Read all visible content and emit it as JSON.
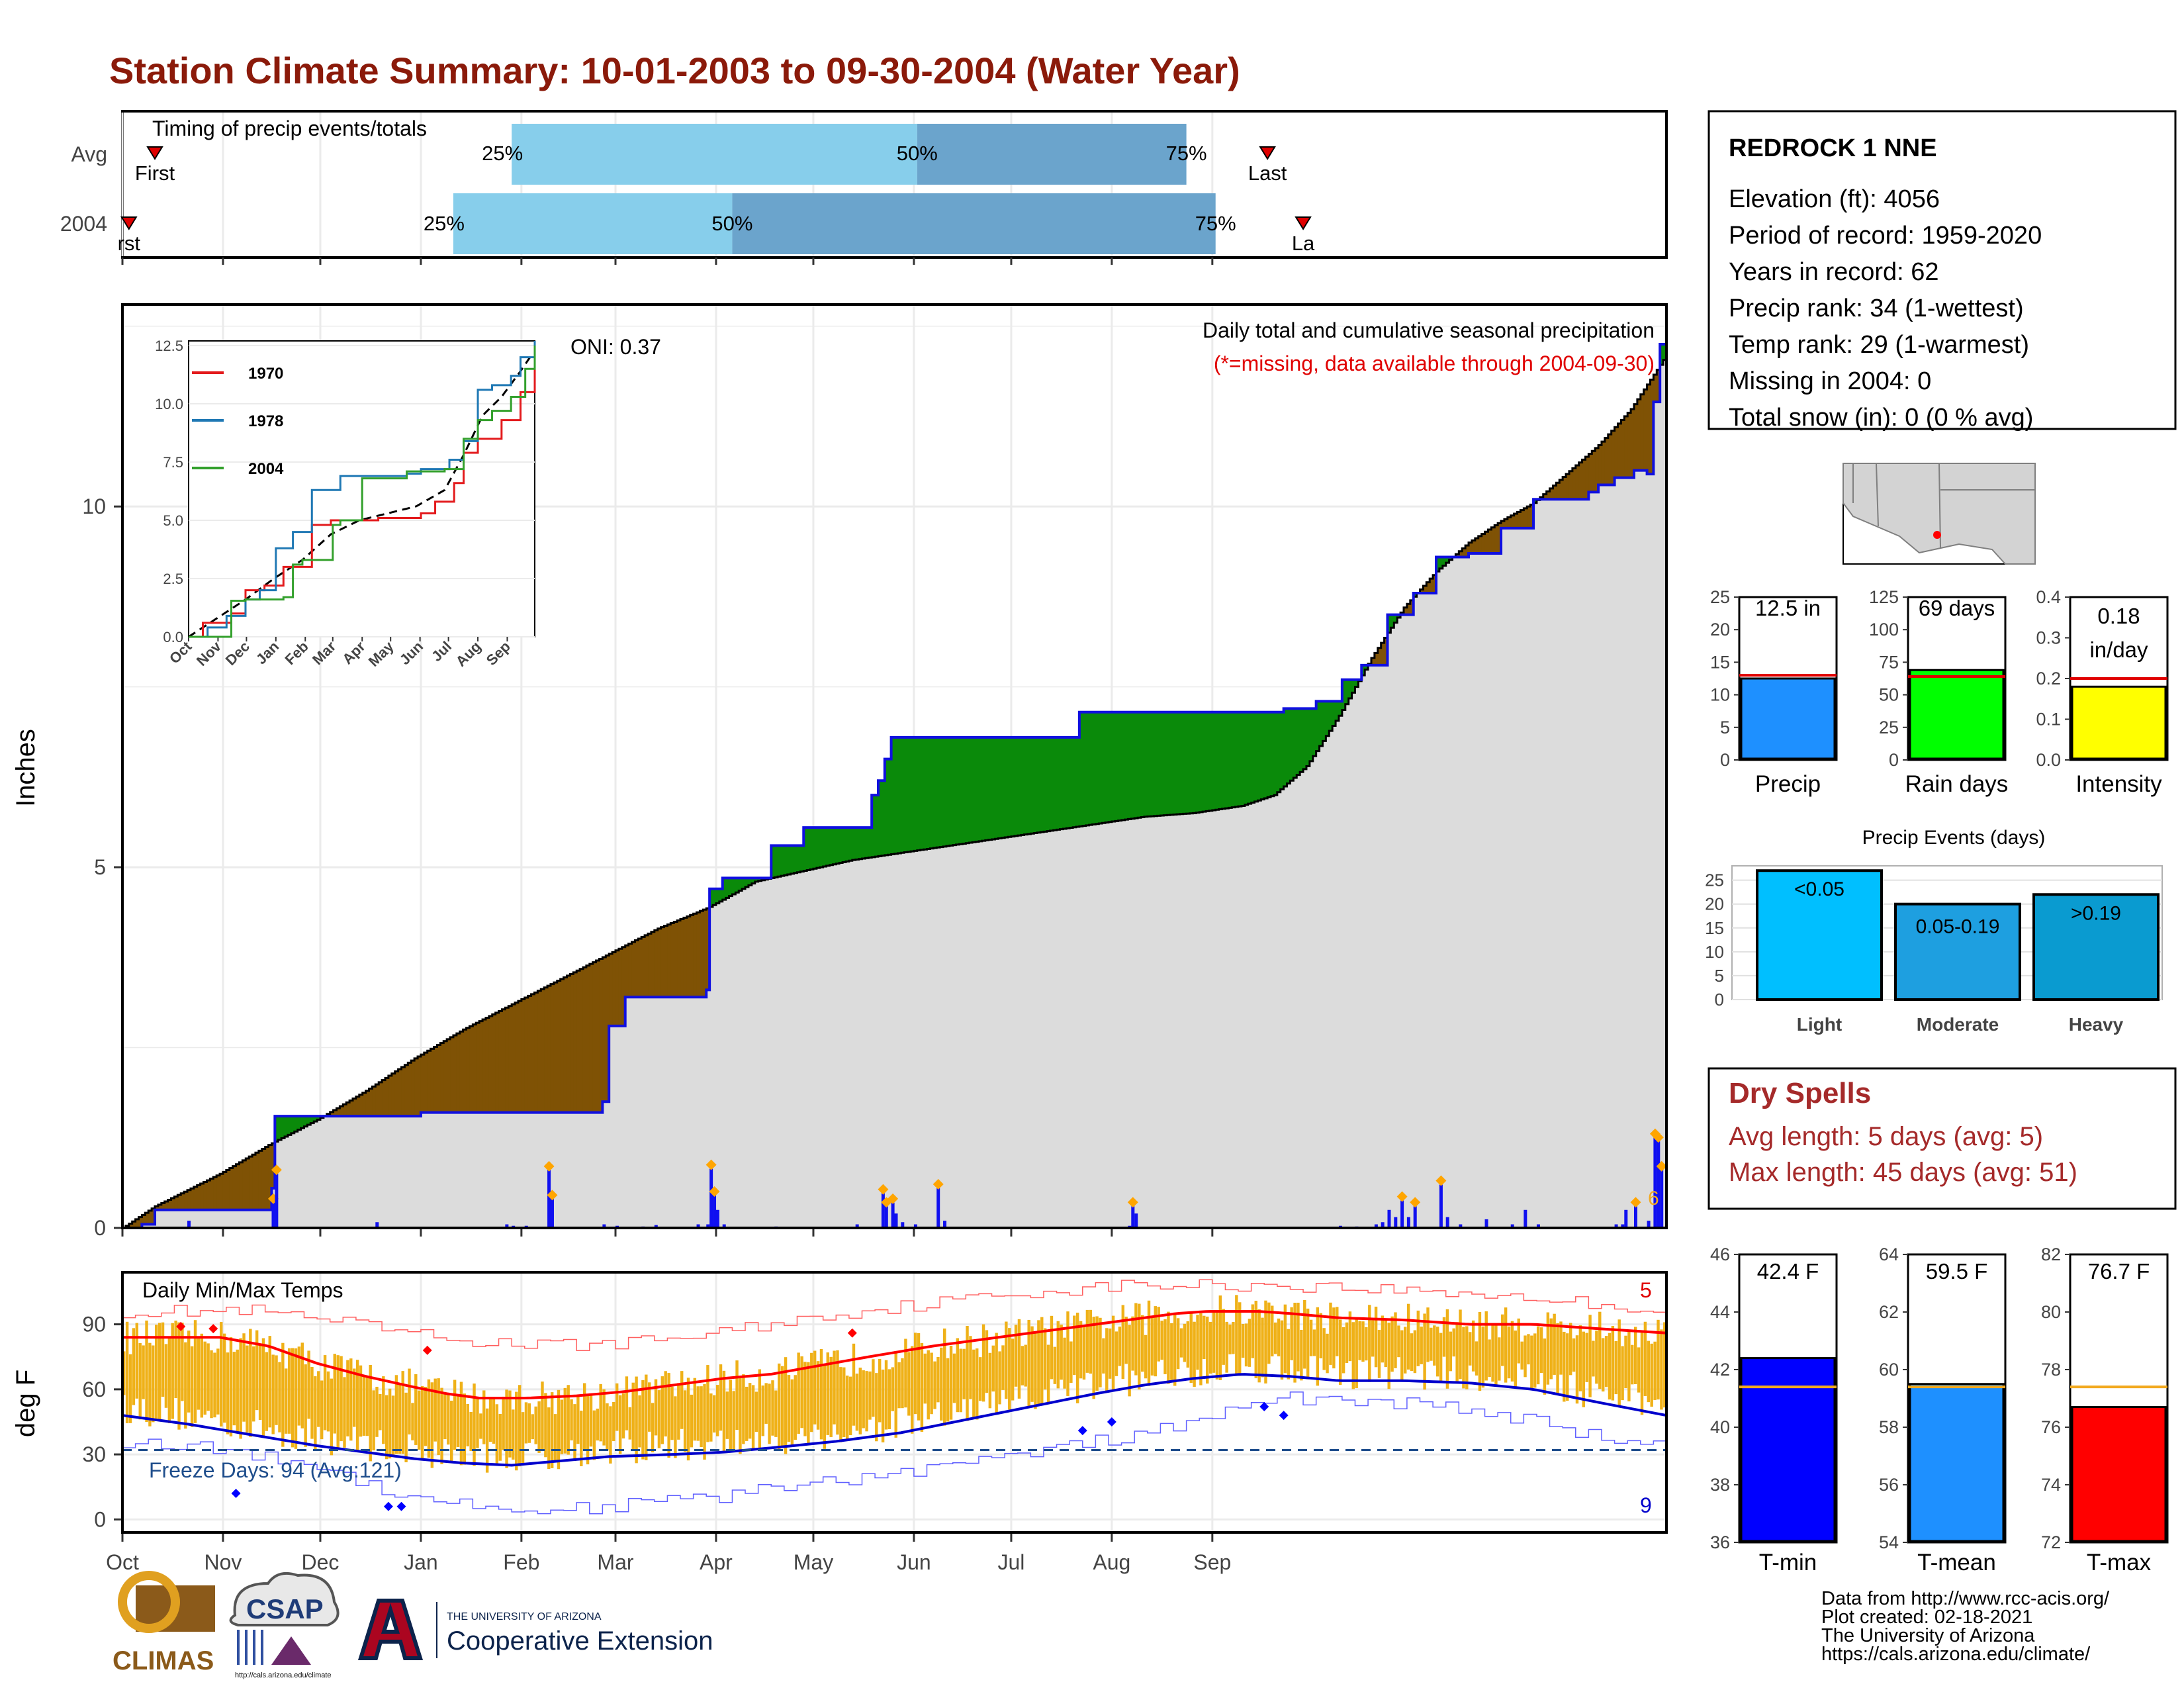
{
  "title": "Station Climate Summary: 10-01-2003 to 09-30-2004 (Water Year)",
  "months": [
    "Oct",
    "Nov",
    "Dec",
    "Jan",
    "Feb",
    "Mar",
    "Apr",
    "May",
    "Jun",
    "Jul",
    "Aug",
    "Sep"
  ],
  "station": {
    "name": "REDROCK 1 NNE",
    "lines": [
      "Elevation (ft): 4056",
      "Period of record: 1959-2020",
      "Years in record: 62",
      "Precip rank: 34 (1-wettest)",
      "Temp rank: 29 (1-warmest)",
      "Missing in 2004: 0",
      "Total snow (in): 0 (0 % avg)"
    ]
  },
  "timing": {
    "label": "Timing of precip events/totals",
    "rows": [
      "Avg",
      "2004"
    ],
    "first_label": "First",
    "last_label": "Last",
    "row2_first": "rst",
    "row2_last": "La",
    "pct_labels": [
      "25%",
      "50%",
      "75%"
    ],
    "avg_days": {
      "first": 10,
      "p25": 120,
      "p50": 245,
      "p75": 328,
      "last": 353
    },
    "y2004_days": {
      "first": 2,
      "p25": 102,
      "p50": 188,
      "p75": 337,
      "last": 364
    }
  },
  "precip_panel": {
    "ylabel": "Inches",
    "title": "Daily total and cumulative seasonal precipitation",
    "subtitle": "(*=missing, data available through 2004-09-30)",
    "oni": "ONI: 0.37",
    "yticks": [
      "0",
      "5",
      "10"
    ],
    "count_label": "6"
  },
  "inset": {
    "yticks": [
      "0.0",
      "2.5",
      "5.0",
      "7.5",
      "10.0",
      "12.5"
    ],
    "legend": [
      {
        "name": "1970",
        "color": "#e31a1c"
      },
      {
        "name": "1978",
        "color": "#1f78b4"
      },
      {
        "name": "2004",
        "color": "#33a02c"
      }
    ]
  },
  "temp_panel": {
    "ylabel": "deg F",
    "title": "Daily Min/Max Temps",
    "yticks": [
      "0",
      "30",
      "60",
      "90"
    ],
    "freeze": "Freeze Days: 94 (Avg:121)",
    "count_top": "5",
    "count_bottom": "9"
  },
  "summary_bars": [
    {
      "label": "Precip",
      "value_text": "12.5 in",
      "value": 12.5,
      "avg": 13,
      "ylim": [
        0,
        25
      ],
      "yticks": [
        "0",
        "5",
        "10",
        "15",
        "20",
        "25"
      ],
      "color": "#1e90ff"
    },
    {
      "label": "Rain days",
      "value_text": "69 days",
      "value": 69,
      "avg": 64,
      "ylim": [
        0,
        125
      ],
      "yticks": [
        "0",
        "25",
        "50",
        "75",
        "100",
        "125"
      ],
      "color": "#00ff00"
    },
    {
      "label": "Intensity",
      "value_text_1": "0.18",
      "value_text_2": "in/day",
      "value": 0.18,
      "avg": 0.2,
      "ylim": [
        0,
        0.4
      ],
      "yticks": [
        "0.0",
        "0.1",
        "0.2",
        "0.3",
        "0.4"
      ],
      "color": "#ffff00"
    }
  ],
  "events": {
    "title": "Precip Events (days)",
    "yticks": [
      "0",
      "5",
      "10",
      "15",
      "20",
      "25"
    ],
    "bars": [
      {
        "name": "Light",
        "label": "<0.05",
        "value": 27,
        "color": "#00bfff"
      },
      {
        "name": "Moderate",
        "label": "0.05-0.19",
        "value": 20,
        "color": "#1e9fe0"
      },
      {
        "name": "Heavy",
        "label": ">0.19",
        "value": 22,
        "color": "#0a9bd0"
      }
    ]
  },
  "dry_spells": {
    "title": "Dry Spells",
    "lines": [
      "Avg length: 5 days (avg: 5)",
      "Max length: 45 days (avg: 51)"
    ]
  },
  "temp_bars": [
    {
      "label": "T-min",
      "value_text": "42.4 F",
      "value": 42.4,
      "avg": 41.4,
      "ylim": [
        36,
        46
      ],
      "yticks": [
        "36",
        "38",
        "40",
        "42",
        "44",
        "46"
      ],
      "color": "#0000ff"
    },
    {
      "label": "T-mean",
      "value_text": "59.5 F",
      "value": 59.5,
      "avg": 59.4,
      "ylim": [
        54,
        64
      ],
      "yticks": [
        "54",
        "56",
        "58",
        "60",
        "62",
        "64"
      ],
      "color": "#1e90ff"
    },
    {
      "label": "T-max",
      "value_text": "76.7 F",
      "value": 76.7,
      "avg": 77.4,
      "ylim": [
        72,
        82
      ],
      "yticks": [
        "72",
        "74",
        "76",
        "78",
        "80",
        "82"
      ],
      "color": "#ff0000"
    }
  ],
  "footer": [
    "Data from http://www.rcc-acis.org/",
    "Plot created: 02-18-2021",
    "The University of Arizona",
    "https://cals.arizona.edu/climate/"
  ],
  "logos": {
    "climas": "CLIMAS",
    "csap": "CSAP",
    "csap_url": "http://cals.arizona.edu/climate",
    "ua_small": "THE UNIVERSITY OF ARIZONA",
    "ua_big": "Cooperative Extension"
  },
  "chart_data": {
    "type": "area",
    "x_unit": "water-year day (Oct 1 = 0)",
    "series": [
      {
        "name": "2004",
        "cumulative_inches": [
          [
            0,
            0
          ],
          [
            6,
            0.05
          ],
          [
            10,
            0.25
          ],
          [
            45,
            0.25
          ],
          [
            46,
            0.55
          ],
          [
            47,
            1.55
          ],
          [
            80,
            1.55
          ],
          [
            92,
            1.6
          ],
          [
            110,
            1.6
          ],
          [
            130,
            1.6
          ],
          [
            148,
            1.75
          ],
          [
            150,
            2.8
          ],
          [
            155,
            3.2
          ],
          [
            180,
            3.3
          ],
          [
            181,
            4.7
          ],
          [
            185,
            4.85
          ],
          [
            200,
            5.3
          ],
          [
            210,
            5.55
          ],
          [
            229,
            5.55
          ],
          [
            231,
            6.0
          ],
          [
            233,
            6.2
          ],
          [
            235,
            6.5
          ],
          [
            237,
            6.8
          ],
          [
            280,
            6.8
          ],
          [
            295,
            7.15
          ],
          [
            350,
            7.15
          ],
          [
            358,
            7.2
          ],
          [
            368,
            7.3
          ],
          [
            376,
            7.6
          ],
          [
            382,
            7.8
          ],
          [
            390,
            8.5
          ],
          [
            398,
            8.8
          ],
          [
            405,
            9.3
          ],
          [
            415,
            9.35
          ],
          [
            425,
            9.7
          ],
          [
            435,
            10.1
          ],
          [
            452,
            10.2
          ],
          [
            455,
            10.3
          ],
          [
            460,
            10.4
          ],
          [
            466,
            10.5
          ],
          [
            470,
            10.45
          ],
          [
            472,
            11.45
          ],
          [
            474,
            12.25
          ],
          [
            476,
            12.5
          ]
        ]
      },
      {
        "name": "Avg",
        "cumulative_inches": [
          [
            0,
            0
          ],
          [
            10,
            0.3
          ],
          [
            30,
            0.75
          ],
          [
            45,
            1.15
          ],
          [
            60,
            1.5
          ],
          [
            75,
            1.9
          ],
          [
            90,
            2.35
          ],
          [
            105,
            2.75
          ],
          [
            120,
            3.1
          ],
          [
            135,
            3.45
          ],
          [
            150,
            3.8
          ],
          [
            165,
            4.15
          ],
          [
            181,
            4.45
          ],
          [
            195,
            4.8
          ],
          [
            210,
            4.95
          ],
          [
            225,
            5.1
          ],
          [
            240,
            5.2
          ],
          [
            255,
            5.3
          ],
          [
            270,
            5.4
          ],
          [
            285,
            5.5
          ],
          [
            300,
            5.6
          ],
          [
            315,
            5.7
          ],
          [
            330,
            5.75
          ],
          [
            345,
            5.85
          ],
          [
            355,
            6.0
          ],
          [
            365,
            6.4
          ],
          [
            375,
            7.1
          ],
          [
            385,
            7.9
          ],
          [
            395,
            8.6
          ],
          [
            405,
            9.1
          ],
          [
            415,
            9.5
          ],
          [
            425,
            9.8
          ],
          [
            435,
            10.05
          ],
          [
            445,
            10.45
          ],
          [
            455,
            10.85
          ],
          [
            465,
            11.35
          ],
          [
            476,
            12.1
          ]
        ]
      }
    ],
    "daily_precip_inches": [
      [
        20,
        0.1
      ],
      [
        46,
        0.35
      ],
      [
        47,
        0.75
      ],
      [
        78,
        0.08
      ],
      [
        118,
        0.05
      ],
      [
        120,
        0.03
      ],
      [
        124,
        0.03
      ],
      [
        131,
        0.8
      ],
      [
        132,
        0.4
      ],
      [
        148,
        0.05
      ],
      [
        152,
        0.03
      ],
      [
        160,
        0.02
      ],
      [
        164,
        0.04
      ],
      [
        177,
        0.05
      ],
      [
        180,
        0.05
      ],
      [
        181,
        0.82
      ],
      [
        182,
        0.45
      ],
      [
        183,
        0.25
      ],
      [
        185,
        0.05
      ],
      [
        201,
        0.02
      ],
      [
        226,
        0.05
      ],
      [
        234,
        0.48
      ],
      [
        235,
        0.3
      ],
      [
        237,
        0.35
      ],
      [
        238,
        0.2
      ],
      [
        240,
        0.08
      ],
      [
        244,
        0.05
      ],
      [
        251,
        0.55
      ],
      [
        253,
        0.1
      ],
      [
        310,
        0.03
      ],
      [
        311,
        0.3
      ],
      [
        312,
        0.2
      ],
      [
        375,
        0.03
      ],
      [
        380,
        0.02
      ],
      [
        386,
        0.05
      ],
      [
        388,
        0.08
      ],
      [
        390,
        0.25
      ],
      [
        392,
        0.15
      ],
      [
        394,
        0.38
      ],
      [
        396,
        0.15
      ],
      [
        398,
        0.3
      ],
      [
        406,
        0.6
      ],
      [
        408,
        0.15
      ],
      [
        412,
        0.05
      ],
      [
        420,
        0.12
      ],
      [
        428,
        0.05
      ],
      [
        432,
        0.25
      ],
      [
        436,
        0.05
      ],
      [
        460,
        0.05
      ],
      [
        462,
        0.05
      ],
      [
        463,
        0.25
      ],
      [
        466,
        0.3
      ],
      [
        470,
        0.1
      ],
      [
        472,
        1.25
      ],
      [
        473,
        1.2
      ],
      [
        474,
        0.8
      ]
    ],
    "xlabel": "",
    "ylabel": "Inches",
    "ylim": [
      0,
      12.8
    ],
    "temps": {
      "ylim": [
        -6,
        114
      ],
      "freeze_line_f": 32,
      "avg_max_f": [
        [
          0,
          84
        ],
        [
          30,
          84
        ],
        [
          45,
          80
        ],
        [
          60,
          72
        ],
        [
          75,
          66
        ],
        [
          90,
          61
        ],
        [
          100,
          58
        ],
        [
          110,
          56
        ],
        [
          125,
          56
        ],
        [
          140,
          57
        ],
        [
          155,
          59
        ],
        [
          170,
          62
        ],
        [
          185,
          65
        ],
        [
          200,
          67
        ],
        [
          215,
          71
        ],
        [
          230,
          75
        ],
        [
          250,
          80
        ],
        [
          270,
          84
        ],
        [
          290,
          88
        ],
        [
          310,
          92
        ],
        [
          325,
          95
        ],
        [
          335,
          96
        ],
        [
          350,
          96
        ],
        [
          360,
          95
        ],
        [
          375,
          93
        ],
        [
          395,
          92
        ],
        [
          415,
          90
        ],
        [
          435,
          90
        ],
        [
          455,
          88
        ],
        [
          476,
          86
        ]
      ],
      "avg_min_f": [
        [
          0,
          48
        ],
        [
          20,
          44
        ],
        [
          40,
          39
        ],
        [
          60,
          34
        ],
        [
          75,
          31
        ],
        [
          90,
          28
        ],
        [
          105,
          26
        ],
        [
          120,
          25
        ],
        [
          135,
          27
        ],
        [
          150,
          29
        ],
        [
          170,
          30
        ],
        [
          185,
          31
        ],
        [
          200,
          33
        ],
        [
          220,
          36
        ],
        [
          240,
          40
        ],
        [
          260,
          46
        ],
        [
          280,
          52
        ],
        [
          300,
          58
        ],
        [
          315,
          62
        ],
        [
          330,
          65
        ],
        [
          345,
          67
        ],
        [
          360,
          66
        ],
        [
          375,
          64
        ],
        [
          395,
          64
        ],
        [
          415,
          63
        ],
        [
          435,
          60
        ],
        [
          455,
          54
        ],
        [
          476,
          48
        ]
      ],
      "record_max_f": [
        [
          0,
          96
        ],
        [
          40,
          96
        ],
        [
          70,
          90
        ],
        [
          100,
          83
        ],
        [
          130,
          80
        ],
        [
          160,
          82
        ],
        [
          190,
          88
        ],
        [
          220,
          95
        ],
        [
          250,
          100
        ],
        [
          280,
          105
        ],
        [
          310,
          108
        ],
        [
          330,
          108
        ],
        [
          360,
          108
        ],
        [
          390,
          106
        ],
        [
          420,
          104
        ],
        [
          450,
          100
        ],
        [
          476,
          96
        ]
      ],
      "record_min_f": [
        [
          0,
          36
        ],
        [
          30,
          32
        ],
        [
          60,
          25
        ],
        [
          80,
          14
        ],
        [
          100,
          8
        ],
        [
          120,
          4
        ],
        [
          150,
          6
        ],
        [
          180,
          10
        ],
        [
          210,
          16
        ],
        [
          240,
          22
        ],
        [
          270,
          28
        ],
        [
          300,
          36
        ],
        [
          330,
          44
        ],
        [
          345,
          52
        ],
        [
          360,
          56
        ],
        [
          390,
          54
        ],
        [
          420,
          50
        ],
        [
          450,
          40
        ],
        [
          476,
          32
        ]
      ]
    }
  }
}
